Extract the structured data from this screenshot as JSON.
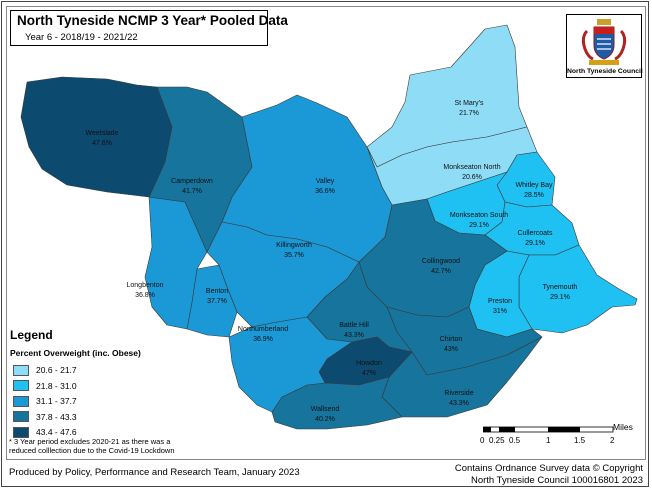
{
  "title": "North Tyneside NCMP 3 Year* Pooled Data",
  "subtitle": "Year 6 - 2018/19 - 2021/22",
  "logo_caption": "North Tyneside Council",
  "legend": {
    "title": "Legend",
    "subtitle": "Percent Overweight (inc. Obese)",
    "classes": [
      {
        "label": "20.6 - 21.7",
        "color": "#8fdcf6"
      },
      {
        "label": "21.8 - 31.0",
        "color": "#1fc0f2"
      },
      {
        "label": "31.1 - 37.7",
        "color": "#1b98d6"
      },
      {
        "label": "37.8 - 43.3",
        "color": "#16749d"
      },
      {
        "label": "43.4 - 47.6",
        "color": "#0d4a70"
      }
    ]
  },
  "footnote": {
    "line1": "* 3 Year period excludes 2020-21 as there was a",
    "line2": "reduced colllection due to the Covid-19 Lockdown"
  },
  "wards": [
    {
      "name": "Weetslade",
      "value": "47.6%"
    },
    {
      "name": "Camperdown",
      "value": "41.7%"
    },
    {
      "name": "Valley",
      "value": "36.6%"
    },
    {
      "name": "St Mary's",
      "value": "21.7%"
    },
    {
      "name": "Monkseaton North",
      "value": "20.6%"
    },
    {
      "name": "Whitley Bay",
      "value": "28.5%"
    },
    {
      "name": "Monkseaton South",
      "value": "29.1%"
    },
    {
      "name": "Cullercoats",
      "value": "29.1%"
    },
    {
      "name": "Killingworth",
      "value": "35.7%"
    },
    {
      "name": "Collingwood",
      "value": "42.7%"
    },
    {
      "name": "Tynemouth",
      "value": "29.1%"
    },
    {
      "name": "Longbenton",
      "value": "36.8%"
    },
    {
      "name": "Benton",
      "value": "37.7%"
    },
    {
      "name": "Preston",
      "value": "31%"
    },
    {
      "name": "Battle Hill",
      "value": "43.3%"
    },
    {
      "name": "Northumberland",
      "value": "36.9%"
    },
    {
      "name": "Chirton",
      "value": "43%"
    },
    {
      "name": "Howdon",
      "value": "47%"
    },
    {
      "name": "Riverside",
      "value": "43.3%"
    },
    {
      "name": "Wallsend",
      "value": "40.2%"
    }
  ],
  "scale_bar": {
    "unit": "Miles",
    "ticks": [
      "0",
      "0.25",
      "0.5",
      "1",
      "1.5",
      "2"
    ]
  },
  "credit_left": "Produced by Policy, Performance and Research Team, January 2023",
  "credit_right": {
    "line1": "Contains Ordnance Survey data © Copyright",
    "line2": "North Tyneside Council 100016801 2023"
  }
}
